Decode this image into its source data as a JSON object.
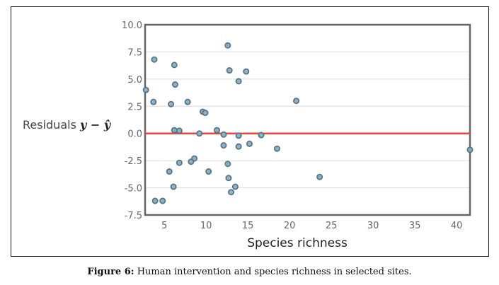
{
  "chart_data": {
    "type": "scatter",
    "title": "",
    "xlabel": "Species richness",
    "ylabel_text": "Residuals",
    "ylabel_math": "y − ŷ",
    "xlim": [
      2.7,
      41.6
    ],
    "ylim": [
      -7.5,
      10.0
    ],
    "xticks": [
      5,
      10,
      15,
      20,
      25,
      30,
      35,
      40
    ],
    "xtick_labels": [
      "5",
      "10",
      "15",
      "20",
      "25",
      "30",
      "35",
      "40"
    ],
    "yticks": [
      -7.5,
      -5.0,
      -2.5,
      0.0,
      2.5,
      5.0,
      7.5,
      10.0
    ],
    "ytick_labels": [
      "-7.5",
      "-5.0",
      "-2.5",
      "0.0",
      "2.5",
      "5.0",
      "7.5",
      "10.0"
    ],
    "grid": "horizontal",
    "reference_line": {
      "y": 0.0,
      "color": "#e8453c"
    },
    "marker_color": "#8fb3c6",
    "marker_edge_color": "#5a7484",
    "points": [
      {
        "x": 2.8,
        "y": 4.0
      },
      {
        "x": 3.8,
        "y": 6.8
      },
      {
        "x": 6.2,
        "y": 6.3
      },
      {
        "x": 6.3,
        "y": 4.5
      },
      {
        "x": 3.7,
        "y": 2.9
      },
      {
        "x": 5.8,
        "y": 2.7
      },
      {
        "x": 7.8,
        "y": 2.9
      },
      {
        "x": 9.6,
        "y": 2.0
      },
      {
        "x": 9.9,
        "y": 1.9
      },
      {
        "x": 6.2,
        "y": 0.3
      },
      {
        "x": 6.8,
        "y": 0.25
      },
      {
        "x": 9.2,
        "y": 0.0
      },
      {
        "x": 12.6,
        "y": 8.1
      },
      {
        "x": 12.8,
        "y": 5.8
      },
      {
        "x": 14.8,
        "y": 5.7
      },
      {
        "x": 13.9,
        "y": 4.8
      },
      {
        "x": 11.3,
        "y": 0.3
      },
      {
        "x": 12.1,
        "y": -0.1
      },
      {
        "x": 13.9,
        "y": -0.2
      },
      {
        "x": 16.6,
        "y": -0.15
      },
      {
        "x": 12.1,
        "y": -1.1
      },
      {
        "x": 13.9,
        "y": -1.2
      },
      {
        "x": 15.2,
        "y": -0.95
      },
      {
        "x": 12.6,
        "y": -2.8
      },
      {
        "x": 5.6,
        "y": -3.5
      },
      {
        "x": 6.8,
        "y": -2.7
      },
      {
        "x": 8.2,
        "y": -2.6
      },
      {
        "x": 8.6,
        "y": -2.3
      },
      {
        "x": 10.3,
        "y": -3.5
      },
      {
        "x": 12.7,
        "y": -4.1
      },
      {
        "x": 13.5,
        "y": -4.9
      },
      {
        "x": 13.0,
        "y": -5.4
      },
      {
        "x": 6.1,
        "y": -4.9
      },
      {
        "x": 3.9,
        "y": -6.2
      },
      {
        "x": 4.8,
        "y": -6.2
      },
      {
        "x": 20.8,
        "y": 3.0
      },
      {
        "x": 18.5,
        "y": -1.4
      },
      {
        "x": 23.6,
        "y": -4.0
      },
      {
        "x": 41.6,
        "y": -1.5
      }
    ]
  },
  "caption": {
    "label": "Figure 6:",
    "text": " Human intervention and species richness in selected sites."
  }
}
